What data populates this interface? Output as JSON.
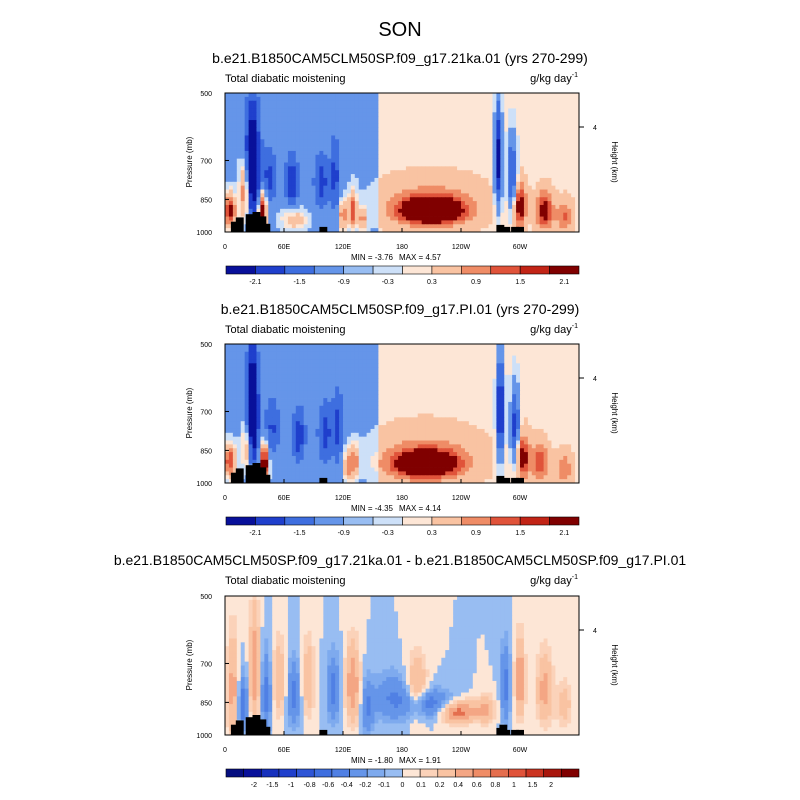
{
  "figure": {
    "title": "SON"
  },
  "colors": {
    "tiles_12": [
      "#08109a",
      "#1f3fcc",
      "#3e6edf",
      "#6595e9",
      "#98bdf2",
      "#cde0f8",
      "#fde6d6",
      "#f9c3a2",
      "#ef8c66",
      "#e0533a",
      "#c22416",
      "#800000"
    ],
    "tiles_20": [
      "#050e80",
      "#08109a",
      "#1630bd",
      "#1f3fcc",
      "#2e55d6",
      "#3e6edf",
      "#5080e4",
      "#6595e9",
      "#7eaaee",
      "#98bdf2",
      "#fde6d6",
      "#fbd2b9",
      "#f9c3a2",
      "#f4a684",
      "#ef8c66",
      "#e46e4e",
      "#e0533a",
      "#cb3421",
      "#a8160c",
      "#800000"
    ],
    "land": "#000000"
  },
  "chart_data": [
    {
      "type": "heatmap",
      "title": "b.e21.B1850CAM5CLM50SP.f09_g17.21ka.01 (yrs 270-299)",
      "left_title": "Total diabatic moistening",
      "units_base": "g/kg day",
      "units_exp": "-1",
      "ylabel": "Pressure (mb)",
      "ylabel_right": "Height (km)",
      "y_ticks": [
        "500",
        "700",
        "850",
        "1000"
      ],
      "y_right_ticks": [
        "4"
      ],
      "x_ticks": [
        "0",
        "60E",
        "120E",
        "180",
        "120W",
        "60W"
      ],
      "min_label": "MIN = ",
      "min": "-3.76",
      "max_label": "MAX = ",
      "max": "4.57",
      "colorbar_labels": [
        "-2.1",
        "-1.5",
        "-0.9",
        "-0.3",
        "0.3",
        "0.9",
        "1.5",
        "2.1"
      ],
      "ylim": [
        1000,
        500
      ],
      "xlim": [
        0,
        360
      ],
      "features": [
        {
          "lon": 5,
          "p": 900,
          "v": 3.0,
          "wx": 6,
          "wp": 70
        },
        {
          "lon": 20,
          "p": 820,
          "v": 2.0,
          "wx": 5,
          "wp": 120
        },
        {
          "lon": 28,
          "p": 720,
          "v": -3.2,
          "wx": 7,
          "wp": 200
        },
        {
          "lon": 38,
          "p": 900,
          "v": 3.5,
          "wx": 4,
          "wp": 80
        },
        {
          "lon": 45,
          "p": 760,
          "v": -1.3,
          "wx": 8,
          "wp": 110
        },
        {
          "lon": 68,
          "p": 780,
          "v": -1.6,
          "wx": 7,
          "wp": 110
        },
        {
          "lon": 70,
          "p": 940,
          "v": 1.2,
          "wx": 12,
          "wp": 50
        },
        {
          "lon": 98,
          "p": 780,
          "v": -1.4,
          "wx": 8,
          "wp": 110
        },
        {
          "lon": 120,
          "p": 920,
          "v": 1.8,
          "wx": 4,
          "wp": 70
        },
        {
          "lon": 130,
          "p": 900,
          "v": 2.4,
          "wx": 4,
          "wp": 80
        },
        {
          "lon": 112,
          "p": 760,
          "v": -1.3,
          "wx": 5,
          "wp": 150
        },
        {
          "lon": 140,
          "p": 940,
          "v": 1.6,
          "wx": 4,
          "wp": 50
        },
        {
          "lon": 210,
          "p": 900,
          "v": 4.2,
          "wx": 30,
          "wp": 55
        },
        {
          "lon": 210,
          "p": 870,
          "v": 1.0,
          "wx": 50,
          "wp": 100
        },
        {
          "lon": 278,
          "p": 700,
          "v": -2.6,
          "wx": 4,
          "wp": 190
        },
        {
          "lon": 292,
          "p": 760,
          "v": -2.0,
          "wx": 5,
          "wp": 150
        },
        {
          "lon": 300,
          "p": 880,
          "v": 2.6,
          "wx": 6,
          "wp": 90
        },
        {
          "lon": 325,
          "p": 900,
          "v": 2.4,
          "wx": 8,
          "wp": 80
        },
        {
          "lon": 345,
          "p": 930,
          "v": 1.4,
          "wx": 8,
          "wp": 70
        }
      ],
      "background": [
        {
          "lon0": 0,
          "lon1": 155,
          "v": -0.4
        },
        {
          "lon0": 155,
          "lon1": 270,
          "v": 0.2
        },
        {
          "lon0": 270,
          "lon1": 360,
          "v": 0.2
        }
      ]
    },
    {
      "type": "heatmap",
      "title": "b.e21.B1850CAM5CLM50SP.f09_g17.PI.01 (yrs 270-299)",
      "left_title": "Total diabatic moistening",
      "units_base": "g/kg day",
      "units_exp": "-1",
      "ylabel": "Pressure (mb)",
      "ylabel_right": "Height (km)",
      "y_ticks": [
        "500",
        "700",
        "850",
        "1000"
      ],
      "y_right_ticks": [
        "4"
      ],
      "x_ticks": [
        "0",
        "60E",
        "120E",
        "180",
        "120W",
        "60W"
      ],
      "min_label": "MIN = ",
      "min": "-4.35",
      "max_label": "MAX = ",
      "max": "4.14",
      "colorbar_labels": [
        "-2.1",
        "-1.5",
        "-0.9",
        "-0.3",
        "0.3",
        "0.9",
        "1.5",
        "2.1"
      ],
      "ylim": [
        1000,
        500
      ],
      "xlim": [
        0,
        360
      ],
      "features": [
        {
          "lon": 5,
          "p": 900,
          "v": 2.5,
          "wx": 6,
          "wp": 70
        },
        {
          "lon": 22,
          "p": 840,
          "v": 1.5,
          "wx": 5,
          "wp": 100
        },
        {
          "lon": 28,
          "p": 700,
          "v": -3.2,
          "wx": 6,
          "wp": 200
        },
        {
          "lon": 40,
          "p": 900,
          "v": 3.5,
          "wx": 4,
          "wp": 80
        },
        {
          "lon": 48,
          "p": 760,
          "v": -1.2,
          "wx": 8,
          "wp": 110
        },
        {
          "lon": 75,
          "p": 790,
          "v": -1.5,
          "wx": 7,
          "wp": 110
        },
        {
          "lon": 102,
          "p": 780,
          "v": -1.4,
          "wx": 8,
          "wp": 120
        },
        {
          "lon": 125,
          "p": 920,
          "v": 1.6,
          "wx": 4,
          "wp": 70
        },
        {
          "lon": 132,
          "p": 900,
          "v": 1.8,
          "wx": 4,
          "wp": 70
        },
        {
          "lon": 115,
          "p": 760,
          "v": -1.3,
          "wx": 5,
          "wp": 150
        },
        {
          "lon": 205,
          "p": 910,
          "v": 4.0,
          "wx": 30,
          "wp": 55
        },
        {
          "lon": 205,
          "p": 880,
          "v": 1.0,
          "wx": 50,
          "wp": 110
        },
        {
          "lon": 280,
          "p": 700,
          "v": -2.6,
          "wx": 4,
          "wp": 190
        },
        {
          "lon": 295,
          "p": 760,
          "v": -2.0,
          "wx": 5,
          "wp": 150
        },
        {
          "lon": 303,
          "p": 880,
          "v": 2.6,
          "wx": 6,
          "wp": 90
        },
        {
          "lon": 320,
          "p": 900,
          "v": 2.0,
          "wx": 8,
          "wp": 80
        },
        {
          "lon": 345,
          "p": 930,
          "v": 1.2,
          "wx": 8,
          "wp": 70
        }
      ],
      "background": [
        {
          "lon0": 0,
          "lon1": 155,
          "v": -0.4
        },
        {
          "lon0": 155,
          "lon1": 270,
          "v": 0.2
        },
        {
          "lon0": 270,
          "lon1": 360,
          "v": 0.2
        }
      ]
    },
    {
      "type": "heatmap",
      "title": "b.e21.B1850CAM5CLM50SP.f09_g17.21ka.01 - b.e21.B1850CAM5CLM50SP.f09_g17.PI.01",
      "left_title": "Total diabatic moistening",
      "units_base": "g/kg day",
      "units_exp": "-1",
      "ylabel": "Pressure (mb)",
      "ylabel_right": "Height (km)",
      "y_ticks": [
        "500",
        "700",
        "850",
        "1000"
      ],
      "y_right_ticks": [
        "4"
      ],
      "x_ticks": [
        "0",
        "60E",
        "120E",
        "180",
        "120W",
        "60W"
      ],
      "min_label": "MIN = ",
      "min": "-1.80",
      "max_label": "MAX = ",
      "max": "1.91",
      "colorbar_labels": [
        "-2",
        "-1.5",
        "-1",
        "-0.8",
        "-0.6",
        "-0.4",
        "-0.2",
        "-0.1",
        "0",
        "0.1",
        "0.2",
        "0.4",
        "0.6",
        "0.8",
        "1",
        "1.5",
        "2"
      ],
      "ylim": [
        1000,
        500
      ],
      "xlim": [
        0,
        360
      ],
      "features": [
        {
          "lon": 8,
          "p": 800,
          "v": 0.5,
          "wx": 6,
          "wp": 200
        },
        {
          "lon": 18,
          "p": 860,
          "v": -0.6,
          "wx": 5,
          "wp": 120
        },
        {
          "lon": 30,
          "p": 720,
          "v": 0.6,
          "wx": 5,
          "wp": 200
        },
        {
          "lon": 42,
          "p": 820,
          "v": -0.5,
          "wx": 5,
          "wp": 160
        },
        {
          "lon": 55,
          "p": 760,
          "v": 0.4,
          "wx": 6,
          "wp": 140
        },
        {
          "lon": 70,
          "p": 820,
          "v": -0.5,
          "wx": 6,
          "wp": 130
        },
        {
          "lon": 85,
          "p": 760,
          "v": 0.4,
          "wx": 6,
          "wp": 140
        },
        {
          "lon": 110,
          "p": 800,
          "v": -0.5,
          "wx": 6,
          "wp": 130
        },
        {
          "lon": 130,
          "p": 780,
          "v": 0.6,
          "wx": 7,
          "wp": 150
        },
        {
          "lon": 145,
          "p": 880,
          "v": -0.4,
          "wx": 6,
          "wp": 120
        },
        {
          "lon": 170,
          "p": 830,
          "v": -0.4,
          "wx": 20,
          "wp": 100
        },
        {
          "lon": 195,
          "p": 790,
          "v": 0.5,
          "wx": 10,
          "wp": 120
        },
        {
          "lon": 210,
          "p": 860,
          "v": -0.6,
          "wx": 25,
          "wp": 60
        },
        {
          "lon": 235,
          "p": 890,
          "v": 0.8,
          "wx": 20,
          "wp": 50
        },
        {
          "lon": 265,
          "p": 880,
          "v": 0.4,
          "wx": 10,
          "wp": 60
        },
        {
          "lon": 285,
          "p": 780,
          "v": -0.5,
          "wx": 5,
          "wp": 150
        },
        {
          "lon": 300,
          "p": 760,
          "v": 0.6,
          "wx": 5,
          "wp": 150
        },
        {
          "lon": 325,
          "p": 800,
          "v": 0.5,
          "wx": 8,
          "wp": 140
        },
        {
          "lon": 345,
          "p": 860,
          "v": 0.3,
          "wx": 8,
          "wp": 100
        }
      ],
      "background": [
        {
          "lon0": 0,
          "lon1": 360,
          "v": 0.0
        }
      ]
    }
  ]
}
